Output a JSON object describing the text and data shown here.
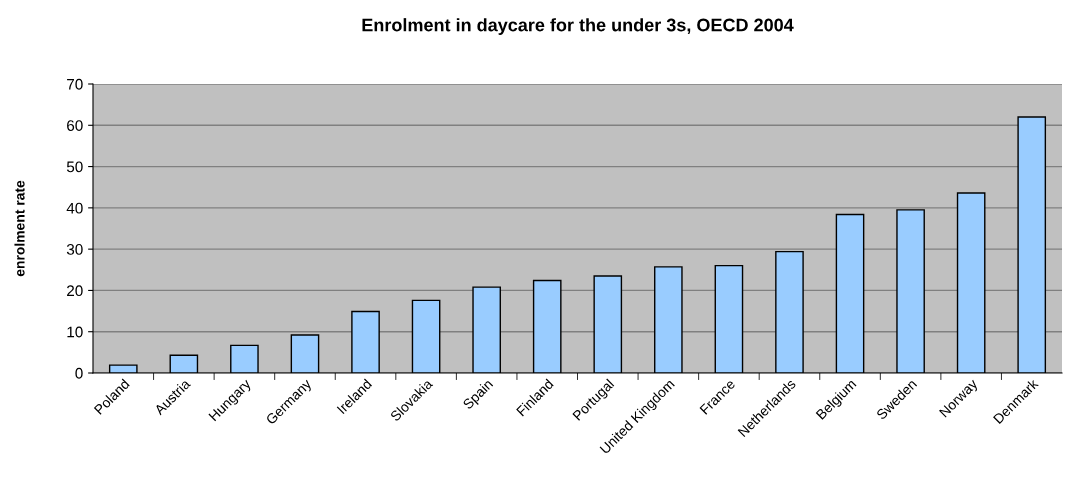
{
  "chart_data": {
    "type": "bar",
    "title": "Enrolment in daycare for the under 3s, OECD 2004",
    "ylabel": "enrolment rate",
    "categories": [
      "Poland",
      "Austria",
      "Hungary",
      "Germany",
      "Ireland",
      "Slovakia",
      "Spain",
      "Finland",
      "Portugal",
      "United Kingdom",
      "France",
      "Netherlands",
      "Belgium",
      "Sweden",
      "Norway",
      "Denmark"
    ],
    "values": [
      1.9,
      4.3,
      6.7,
      9.2,
      14.9,
      17.6,
      20.8,
      22.4,
      23.5,
      25.7,
      26.0,
      29.4,
      38.4,
      39.5,
      43.6,
      62.0
    ],
    "color": "#99ccff",
    "ylim": [
      0,
      70
    ],
    "yticks": [
      0,
      10,
      20,
      30,
      40,
      50,
      60,
      70
    ],
    "grid": "y",
    "legend": false
  }
}
